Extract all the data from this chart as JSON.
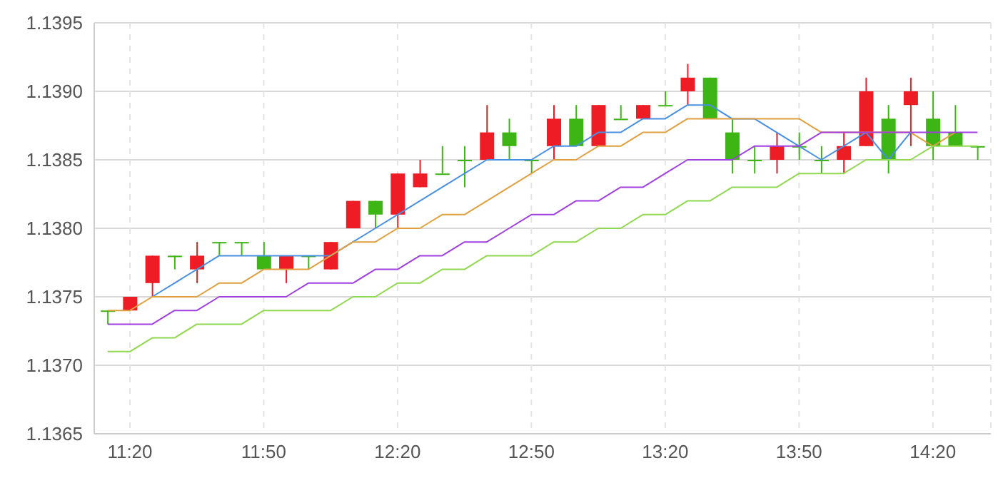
{
  "chart_data": {
    "type": "candlestick",
    "categories": [
      null,
      "11:20",
      null,
      null,
      null,
      null,
      null,
      "11:50",
      null,
      null,
      null,
      null,
      null,
      "12:20",
      null,
      null,
      null,
      null,
      null,
      "12:50",
      null,
      null,
      null,
      null,
      null,
      "13:20",
      null,
      null,
      null,
      null,
      null,
      "13:50",
      null,
      null,
      null,
      null,
      null,
      "14:20",
      null,
      null
    ],
    "ohlc": [
      [
        1.1374,
        1.1374,
        1.1373,
        1.1374
      ],
      [
        1.1374,
        1.1375,
        1.1374,
        1.1375
      ],
      [
        1.1376,
        1.1378,
        1.1375,
        1.1378
      ],
      [
        1.1378,
        1.1378,
        1.1377,
        1.1378
      ],
      [
        1.1377,
        1.1379,
        1.1376,
        1.1378
      ],
      [
        1.1379,
        1.1379,
        1.1378,
        1.1379
      ],
      [
        1.1379,
        1.1379,
        1.1378,
        1.1379
      ],
      [
        1.1378,
        1.1379,
        1.1377,
        1.1377
      ],
      [
        1.1377,
        1.1378,
        1.1376,
        1.1378
      ],
      [
        1.1378,
        1.1378,
        1.1377,
        1.1378
      ],
      [
        1.1377,
        1.1379,
        1.1377,
        1.1379
      ],
      [
        1.138,
        1.1382,
        1.138,
        1.1382
      ],
      [
        1.1382,
        1.1382,
        1.138,
        1.1381
      ],
      [
        1.1381,
        1.1384,
        1.138,
        1.1384
      ],
      [
        1.1383,
        1.1385,
        1.1383,
        1.1384
      ],
      [
        1.1384,
        1.1386,
        1.1384,
        1.1384
      ],
      [
        1.1385,
        1.1386,
        1.1383,
        1.1385
      ],
      [
        1.1385,
        1.1389,
        1.1385,
        1.1387
      ],
      [
        1.1387,
        1.1388,
        1.1385,
        1.1386
      ],
      [
        1.1385,
        1.1385,
        1.1384,
        1.1385
      ],
      [
        1.1386,
        1.1389,
        1.1385,
        1.1388
      ],
      [
        1.1388,
        1.1389,
        1.1386,
        1.1386
      ],
      [
        1.1386,
        1.1389,
        1.1386,
        1.1389
      ],
      [
        1.1388,
        1.1389,
        1.1388,
        1.1388
      ],
      [
        1.1388,
        1.1389,
        1.1388,
        1.1389
      ],
      [
        1.1389,
        1.139,
        1.1389,
        1.1389
      ],
      [
        1.139,
        1.1392,
        1.1389,
        1.1391
      ],
      [
        1.1391,
        1.1391,
        1.1388,
        1.1388
      ],
      [
        1.1387,
        1.1388,
        1.1384,
        1.1385
      ],
      [
        1.1385,
        1.1386,
        1.1384,
        1.1385
      ],
      [
        1.1385,
        1.1387,
        1.1384,
        1.1386
      ],
      [
        1.1386,
        1.1387,
        1.1385,
        1.1386
      ],
      [
        1.1385,
        1.1386,
        1.1384,
        1.1385
      ],
      [
        1.1385,
        1.1387,
        1.1384,
        1.1386
      ],
      [
        1.1386,
        1.1391,
        1.1386,
        1.139
      ],
      [
        1.1388,
        1.1389,
        1.1384,
        1.1385
      ],
      [
        1.1389,
        1.1391,
        1.1386,
        1.139
      ],
      [
        1.1388,
        1.139,
        1.1385,
        1.1386
      ],
      [
        1.1387,
        1.1389,
        1.1386,
        1.1386
      ],
      [
        1.1386,
        1.1386,
        1.1385,
        1.1386
      ]
    ],
    "colors": [
      "#3cb515",
      "#ee1c25",
      "#ee1c25",
      "#3cb515",
      "#ee1c25",
      "#3cb515",
      "#3cb515",
      "#3cb515",
      "#ee1c25",
      "#3cb515",
      "#ee1c25",
      "#ee1c25",
      "#3cb515",
      "#ee1c25",
      "#ee1c25",
      "#3cb515",
      "#3cb515",
      "#ee1c25",
      "#3cb515",
      "#3cb515",
      "#ee1c25",
      "#3cb515",
      "#ee1c25",
      "#3cb515",
      "#ee1c25",
      "#3cb515",
      "#ee1c25",
      "#3cb515",
      "#3cb515",
      "#3cb515",
      "#ee1c25",
      "#3cb515",
      "#3cb515",
      "#ee1c25",
      "#ee1c25",
      "#3cb515",
      "#ee1c25",
      "#3cb515",
      "#3cb515",
      "#3cb515"
    ],
    "series": [
      {
        "type": "line",
        "color": "#4a90e2",
        "values": [
          null,
          null,
          1.1375,
          1.1376,
          1.1377,
          1.1378,
          1.1378,
          1.1378,
          1.1378,
          1.1378,
          1.1378,
          1.1379,
          1.138,
          1.1381,
          1.1382,
          1.1383,
          1.1384,
          1.1385,
          1.1385,
          1.1385,
          1.1386,
          1.1386,
          1.1387,
          1.1387,
          1.1388,
          1.1388,
          1.1389,
          1.1389,
          1.1388,
          1.1388,
          1.1387,
          1.1386,
          1.1385,
          1.1386,
          1.1387,
          1.1385,
          1.1387,
          null,
          null,
          null
        ]
      },
      {
        "type": "line",
        "color": "#e0a040",
        "values": [
          1.1374,
          1.1374,
          1.1375,
          1.1375,
          1.1375,
          1.1376,
          1.1376,
          1.1377,
          1.1377,
          1.1377,
          1.1378,
          1.1379,
          1.1379,
          1.138,
          1.138,
          1.1381,
          1.1381,
          1.1382,
          1.1383,
          1.1384,
          1.1385,
          1.1385,
          1.1386,
          1.1386,
          1.1387,
          1.1387,
          1.1388,
          1.1388,
          1.1388,
          1.1388,
          1.1388,
          1.1388,
          1.1387,
          1.1387,
          1.1387,
          1.1387,
          1.1387,
          1.1386,
          1.1387,
          null
        ]
      },
      {
        "type": "line",
        "color": "#a040e0",
        "values": [
          1.1373,
          1.1373,
          1.1373,
          1.1374,
          1.1374,
          1.1375,
          1.1375,
          1.1375,
          1.1375,
          1.1376,
          1.1376,
          1.1376,
          1.1377,
          1.1377,
          1.1378,
          1.1378,
          1.1379,
          1.1379,
          1.138,
          1.1381,
          1.1381,
          1.1382,
          1.1382,
          1.1383,
          1.1383,
          1.1384,
          1.1385,
          1.1385,
          1.1385,
          1.1386,
          1.1386,
          1.1386,
          1.1387,
          1.1387,
          1.1387,
          1.1387,
          1.1387,
          1.1387,
          1.1387,
          1.1387
        ]
      },
      {
        "type": "line",
        "color": "#90d850",
        "values": [
          1.1371,
          1.1371,
          1.1372,
          1.1372,
          1.1373,
          1.1373,
          1.1373,
          1.1374,
          1.1374,
          1.1374,
          1.1374,
          1.1375,
          1.1375,
          1.1376,
          1.1376,
          1.1377,
          1.1377,
          1.1378,
          1.1378,
          1.1378,
          1.1379,
          1.1379,
          1.138,
          1.138,
          1.1381,
          1.1381,
          1.1382,
          1.1382,
          1.1383,
          1.1383,
          1.1383,
          1.1384,
          1.1384,
          1.1384,
          1.1385,
          1.1385,
          1.1385,
          1.1386,
          1.1386,
          1.1386
        ]
      }
    ],
    "ylim": [
      1.1365,
      1.1395
    ],
    "yticks": [
      1.1365,
      {
        "value": 1.137,
        "label": "1.1370"
      },
      1.1375,
      {
        "value": 1.138,
        "label": "1.1380"
      },
      1.1385,
      {
        "value": 1.139,
        "label": "1.1390"
      },
      1.1395
    ],
    "grid": true
  }
}
